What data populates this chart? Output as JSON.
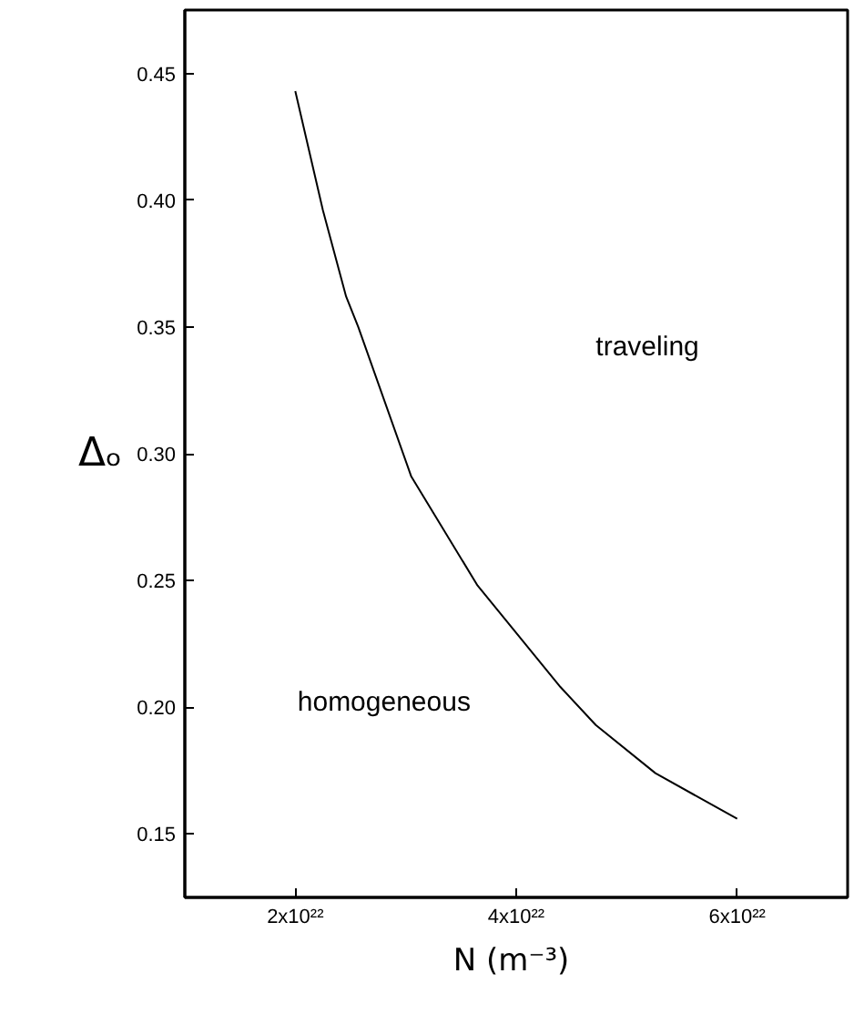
{
  "chart_data": {
    "type": "line",
    "xlabel": "N  (m⁻³)",
    "ylabel": "Δₒ",
    "x": [
      2e+22,
      2.25e+22,
      2.46e+22,
      2.57e+22,
      3.05e+22,
      3.65e+22,
      4.4e+22,
      4.72e+22,
      5.26e+22,
      6e+22
    ],
    "series": [
      {
        "color": "#000000",
        "values": [
          0.443,
          0.396,
          0.362,
          0.35,
          0.291,
          0.248,
          0.208,
          0.193,
          0.174,
          0.156
        ]
      }
    ],
    "xlim": [
      1e+22,
      7e+22
    ],
    "ylim": [
      0.125,
      0.475
    ],
    "xticks": [
      {
        "value": 2e+22,
        "label": "2x10²²"
      },
      {
        "value": 4e+22,
        "label": "4x10²²"
      },
      {
        "value": 6e+22,
        "label": "6x10²²"
      }
    ],
    "yticks": [
      {
        "value": 0.15,
        "label": "0.15"
      },
      {
        "value": 0.2,
        "label": "0.20"
      },
      {
        "value": 0.25,
        "label": "0.25"
      },
      {
        "value": 0.3,
        "label": "0.30"
      },
      {
        "value": 0.35,
        "label": "0.35"
      },
      {
        "value": 0.4,
        "label": "0.40"
      },
      {
        "value": 0.45,
        "label": "0.45"
      }
    ],
    "annotations": [
      "traveling",
      "homogeneous"
    ],
    "grid": false,
    "marker": "none",
    "line_style": "solid"
  }
}
